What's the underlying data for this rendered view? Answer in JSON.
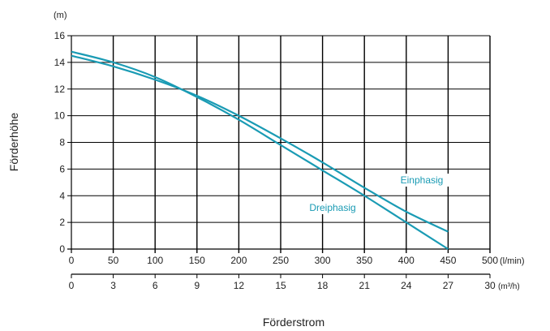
{
  "chart_data": {
    "type": "line",
    "title": "",
    "ylabel": "Förderhöhe",
    "y_unit": "(m)",
    "xlabel": "Förderstrom",
    "x_unit_primary": "(l/min)",
    "x_unit_secondary": "(m³/h)",
    "ylim": [
      0,
      16
    ],
    "xlim": [
      0,
      500
    ],
    "y_ticks": [
      "0",
      "2",
      "4",
      "6",
      "8",
      "10",
      "12",
      "14",
      "16"
    ],
    "x_ticks_primary": [
      "0",
      "50",
      "100",
      "150",
      "200",
      "250",
      "300",
      "350",
      "400",
      "450",
      "500"
    ],
    "x_ticks_secondary": [
      "0",
      "3",
      "6",
      "9",
      "12",
      "15",
      "18",
      "21",
      "24",
      "27",
      "30"
    ],
    "grid": true,
    "series": [
      {
        "name": "Einphasig",
        "x": [
          0,
          50,
          100,
          150,
          200,
          250,
          300,
          350,
          400,
          450
        ],
        "y": [
          14.5,
          13.7,
          12.7,
          11.5,
          10.0,
          8.3,
          6.5,
          4.6,
          2.8,
          1.3
        ]
      },
      {
        "name": "Dreiphasig",
        "x": [
          0,
          50,
          100,
          150,
          200,
          250,
          300,
          350,
          400,
          450
        ],
        "y": [
          14.8,
          14.0,
          12.9,
          11.4,
          9.7,
          7.8,
          5.9,
          4.0,
          2.0,
          0.0
        ]
      }
    ],
    "colors": {
      "series": "#1a9bb4",
      "grid": "#000000",
      "text": "#222222"
    }
  }
}
